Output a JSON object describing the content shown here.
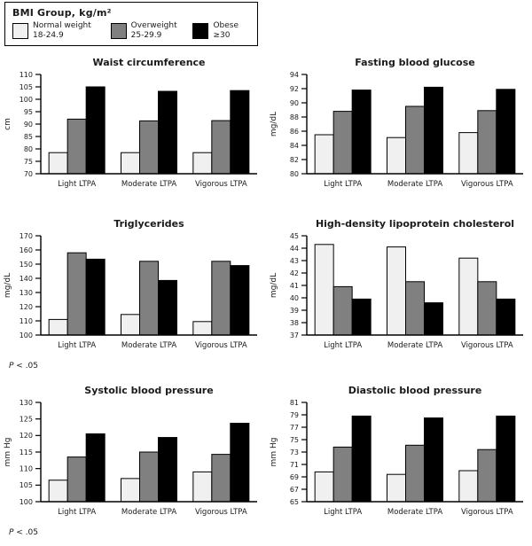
{
  "legend": {
    "title": "BMI Group, kg/m²",
    "items": [
      {
        "name": "normal-weight",
        "lines": [
          "Normal weight",
          "18-24.9"
        ],
        "color": "#f0f0f0"
      },
      {
        "name": "overweight",
        "lines": [
          "Overweight",
          "25-29.9"
        ],
        "color": "#808080"
      },
      {
        "name": "obese",
        "lines": [
          "Obese ≥30"
        ],
        "color": "#000000"
      }
    ]
  },
  "series_colors": [
    "#f0f0f0",
    "#808080",
    "#000000"
  ],
  "chart_data": [
    {
      "type": "bar",
      "title": "Waist circumference",
      "ylabel": "cm",
      "ylim": [
        70,
        110
      ],
      "ystep": 5,
      "categories": [
        "Light LTPA",
        "Moderate LTPA",
        "Vigorous LTPA"
      ],
      "series": [
        {
          "name": "Normal weight 18-24.9",
          "values": [
            78.5,
            78.5,
            78.5
          ]
        },
        {
          "name": "Overweight 25-29.9",
          "values": [
            92.0,
            91.3,
            91.4
          ]
        },
        {
          "name": "Obese ≥30",
          "values": [
            105.0,
            103.2,
            103.5
          ]
        }
      ]
    },
    {
      "type": "bar",
      "title": "Fasting blood glucose",
      "ylabel": "mg/dL",
      "ylim": [
        80,
        94
      ],
      "ystep": 2,
      "categories": [
        "Light LTPA",
        "Moderate LTPA",
        "Vigorous LTPA"
      ],
      "series": [
        {
          "name": "Normal weight 18-24.9",
          "values": [
            85.5,
            85.1,
            85.8
          ]
        },
        {
          "name": "Overweight 25-29.9",
          "values": [
            88.8,
            89.5,
            88.9
          ]
        },
        {
          "name": "Obese ≥30",
          "values": [
            91.8,
            92.2,
            91.9
          ]
        }
      ]
    },
    {
      "type": "bar",
      "title": "Triglycerides",
      "ylabel": "mg/dL",
      "ylim": [
        100,
        170
      ],
      "ystep": 10,
      "categories": [
        "Light LTPA",
        "Moderate LTPA",
        "Vigorous LTPA"
      ],
      "series": [
        {
          "name": "Normal weight 18-24.9",
          "values": [
            111.0,
            114.5,
            109.5
          ]
        },
        {
          "name": "Overweight 25-29.9",
          "values": [
            158.0,
            152.0,
            152.0
          ]
        },
        {
          "name": "Obese ≥30",
          "values": [
            153.5,
            138.5,
            149.0
          ]
        }
      ],
      "footnote": {
        "italic": "P",
        "text": " < .05"
      }
    },
    {
      "type": "bar",
      "title": "High-density lipoprotein cholesterol",
      "ylabel": "mg/dL",
      "ylim": [
        37,
        45
      ],
      "ystep": 1,
      "categories": [
        "Light LTPA",
        "Moderate LTPA",
        "Vigorous LTPA"
      ],
      "series": [
        {
          "name": "Normal weight 18-24.9",
          "values": [
            44.3,
            44.1,
            43.2
          ]
        },
        {
          "name": "Overweight 25-29.9",
          "values": [
            40.9,
            41.3,
            41.3
          ]
        },
        {
          "name": "Obese ≥30",
          "values": [
            39.9,
            39.6,
            39.9
          ]
        }
      ]
    },
    {
      "type": "bar",
      "title": "Systolic blood pressure",
      "ylabel": "mm Hg",
      "ylim": [
        100,
        130
      ],
      "ystep": 5,
      "categories": [
        "Light LTPA",
        "Moderate LTPA",
        "Vigorous LTPA"
      ],
      "series": [
        {
          "name": "Normal weight 18-24.9",
          "values": [
            106.5,
            107.0,
            109.0
          ]
        },
        {
          "name": "Overweight 25-29.9",
          "values": [
            113.5,
            115.0,
            114.3
          ]
        },
        {
          "name": "Obese ≥30",
          "values": [
            120.5,
            119.4,
            123.7
          ]
        }
      ],
      "footnote": {
        "italic": "P",
        "text": " < .05"
      }
    },
    {
      "type": "bar",
      "title": "Diastolic blood pressure",
      "ylabel": "mm Hg",
      "ylim": [
        65,
        81
      ],
      "ystep": 2,
      "categories": [
        "Light LTPA",
        "Moderate LTPA",
        "Vigorous LTPA"
      ],
      "series": [
        {
          "name": "Normal weight 18-24.9",
          "values": [
            69.8,
            69.4,
            70.0
          ]
        },
        {
          "name": "Overweight 25-29.9",
          "values": [
            73.8,
            74.1,
            73.4
          ]
        },
        {
          "name": "Obese ≥30",
          "values": [
            78.8,
            78.5,
            78.8
          ]
        }
      ]
    }
  ]
}
